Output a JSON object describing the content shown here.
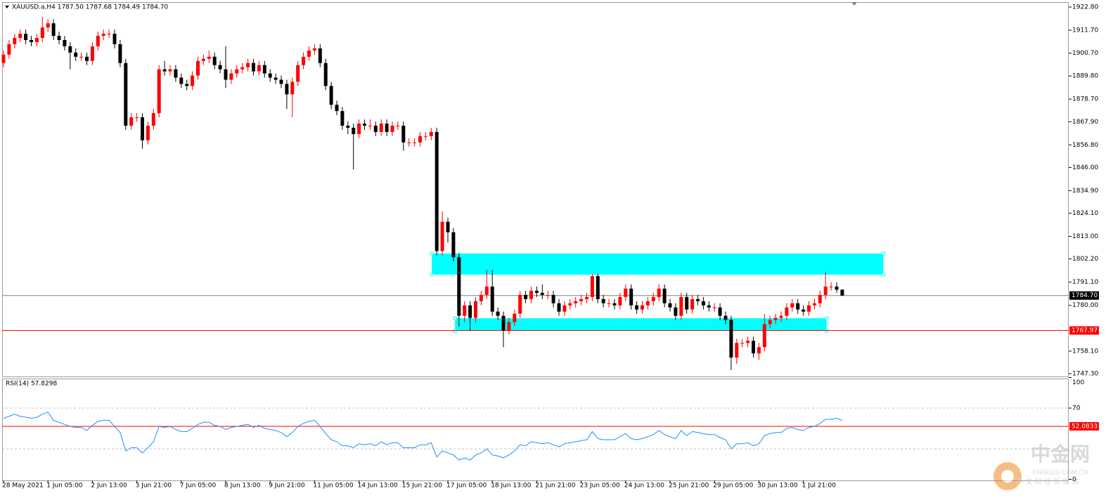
{
  "header": "XAUUSD.a,H4  1787.50 1787.68 1784.49 1784.70",
  "chart_data": [
    {
      "type": "candlestick",
      "categories": [
        "28 May 2021",
        null,
        null,
        null,
        null,
        null,
        null,
        null,
        "1 Jun 05:00",
        null,
        null,
        null,
        null,
        null,
        null,
        null,
        "2 Jun 13:00",
        null,
        null,
        null,
        null,
        null,
        null,
        null,
        "3 Jun 21:00",
        null,
        null,
        null,
        null,
        null,
        null,
        null,
        "7 Jun 05:00",
        null,
        null,
        null,
        null,
        null,
        null,
        null,
        "8 Jun 13:00",
        null,
        null,
        null,
        null,
        null,
        null,
        null,
        "9 Jun 21:00",
        null,
        null,
        null,
        null,
        null,
        null,
        null,
        "11 Jun 05:00",
        null,
        null,
        null,
        null,
        null,
        null,
        null,
        "14 Jun 13:00",
        null,
        null,
        null,
        null,
        null,
        null,
        null,
        "15 Jun 21:00",
        null,
        null,
        null,
        null,
        null,
        null,
        null,
        "17 Jun 05:00",
        null,
        null,
        null,
        null,
        null,
        null,
        null,
        "18 Jun 13:00",
        null,
        null,
        null,
        null,
        null,
        null,
        null,
        "21 Jun 21:00",
        null,
        null,
        null,
        null,
        null,
        null,
        null,
        "23 Jun 05:00",
        null,
        null,
        null,
        null,
        null,
        null,
        null,
        "24 Jun 13:00",
        null,
        null,
        null,
        null,
        null,
        null,
        null,
        "25 Jun 21:00",
        null,
        null,
        null,
        null,
        null,
        null,
        null,
        "29 Jun 05:00",
        null,
        null,
        null,
        null,
        null,
        null,
        null,
        "30 Jun 13:00",
        null,
        null,
        null,
        null,
        null,
        null,
        null,
        "1 Jul 21:00",
        null,
        null,
        null,
        null,
        null,
        null,
        null
      ],
      "open": [
        1896,
        1900,
        1905,
        1908,
        1910,
        1907,
        1906,
        1908,
        1913,
        1915,
        1909,
        1907,
        1904,
        1901,
        1899,
        1899,
        1897,
        1904,
        1909,
        1910,
        1910,
        1905,
        1896,
        1866,
        1870,
        1870,
        1859,
        1866,
        1872,
        1893,
        1892,
        1893,
        1889,
        1886,
        1885,
        1890,
        1897,
        1898,
        1899,
        1895,
        1893,
        1888,
        1891,
        1893,
        1894,
        1896,
        1892,
        1895,
        1891,
        1889,
        1888,
        1886,
        1881,
        1887,
        1895,
        1899,
        1902,
        1903,
        1896,
        1885,
        1876,
        1873,
        1866,
        1865,
        1862,
        1867,
        1866,
        1866,
        1863,
        1867,
        1863,
        1866,
        1866,
        1858,
        1858,
        1858,
        1861,
        1861,
        1863,
        1806,
        1820,
        1815,
        1803,
        1775,
        1780,
        1774,
        1782,
        1785,
        1789,
        1777,
        1775,
        1768,
        1772,
        1776,
        1785,
        1783,
        1787,
        1786,
        1785,
        1785,
        1781,
        1777,
        1780,
        1781,
        1782,
        1783,
        1784,
        1794,
        1783,
        1781,
        1781,
        1780,
        1784,
        1788,
        1780,
        1778,
        1780,
        1782,
        1784,
        1788,
        1781,
        1779,
        1775,
        1784,
        1778,
        1783,
        1782,
        1780,
        1779,
        1779,
        1775,
        1773,
        1755,
        1762,
        1762,
        1763,
        1757,
        1760,
        1771,
        1773,
        1774,
        1775,
        1779,
        1781,
        1778,
        1777,
        1780,
        1781,
        1785,
        1789,
        1789,
        1787.5
      ],
      "high": [
        1902,
        1907,
        1910,
        1912,
        1912,
        1909,
        1910,
        1918,
        1917,
        1917,
        1911,
        1909,
        1906,
        1903,
        1901,
        1901,
        1906,
        1911,
        1912,
        1912,
        1912,
        1907,
        1898,
        1872,
        1872,
        1872,
        1868,
        1874,
        1895,
        1897,
        1895,
        1895,
        1891,
        1888,
        1892,
        1899,
        1900,
        1902,
        1901,
        1897,
        1904,
        1893,
        1895,
        1896,
        1898,
        1898,
        1897,
        1897,
        1893,
        1891,
        1890,
        1888,
        1889,
        1897,
        1901,
        1904,
        1905,
        1905,
        1898,
        1887,
        1878,
        1875,
        1868,
        1867,
        1869,
        1869,
        1869,
        1868,
        1869,
        1869,
        1868,
        1868,
        1868,
        1860,
        1860,
        1863,
        1863,
        1865,
        1865,
        1825,
        1822,
        1817,
        1805,
        1782,
        1782,
        1784,
        1787,
        1797,
        1797,
        1779,
        1777,
        1774,
        1778,
        1787,
        1787,
        1789,
        1789,
        1790,
        1787,
        1787,
        1783,
        1782,
        1783,
        1784,
        1785,
        1786,
        1795,
        1795,
        1785,
        1783,
        1783,
        1786,
        1790,
        1790,
        1782,
        1782,
        1784,
        1786,
        1790,
        1790,
        1783,
        1781,
        1786,
        1786,
        1785,
        1785,
        1784,
        1782,
        1781,
        1781,
        1777,
        1775,
        1764,
        1764,
        1765,
        1765,
        1762,
        1776,
        1775,
        1776,
        1777,
        1781,
        1783,
        1783,
        1780,
        1782,
        1783,
        1787,
        1796,
        1791,
        1791,
        1787.68
      ],
      "low": [
        1894,
        1898,
        1903,
        1906,
        1905,
        1904,
        1904,
        1906,
        1911,
        1907,
        1905,
        1902,
        1893,
        1897,
        1897,
        1895,
        1895,
        1902,
        1907,
        1908,
        1903,
        1894,
        1864,
        1864,
        1868,
        1855,
        1857,
        1864,
        1870,
        1890,
        1890,
        1887,
        1884,
        1883,
        1883,
        1888,
        1895,
        1896,
        1893,
        1891,
        1884,
        1886,
        1889,
        1891,
        1892,
        1890,
        1890,
        1889,
        1887,
        1886,
        1884,
        1874,
        1870,
        1885,
        1893,
        1897,
        1900,
        1894,
        1883,
        1874,
        1871,
        1864,
        1862,
        1845,
        1860,
        1864,
        1864,
        1861,
        1861,
        1861,
        1861,
        1864,
        1854,
        1856,
        1856,
        1856,
        1859,
        1859,
        1804,
        1804,
        1810,
        1801,
        1770,
        1772,
        1768,
        1772,
        1780,
        1783,
        1775,
        1773,
        1760,
        1766,
        1770,
        1774,
        1781,
        1781,
        1784,
        1783,
        1783,
        1779,
        1775,
        1775,
        1778,
        1779,
        1780,
        1781,
        1782,
        1781,
        1779,
        1779,
        1778,
        1778,
        1782,
        1778,
        1776,
        1776,
        1778,
        1780,
        1782,
        1779,
        1777,
        1773,
        1773,
        1776,
        1776,
        1780,
        1778,
        1777,
        1777,
        1773,
        1771,
        1749,
        1752,
        1760,
        1760,
        1755,
        1754,
        1758,
        1769,
        1771,
        1772,
        1773,
        1777,
        1776,
        1775,
        1775,
        1778,
        1779,
        1783,
        1787,
        1786,
        1784.49
      ],
      "close": [
        1900,
        1905,
        1908,
        1910,
        1907,
        1906,
        1908,
        1913,
        1915,
        1909,
        1907,
        1904,
        1901,
        1899,
        1899,
        1897,
        1904,
        1909,
        1910,
        1910,
        1905,
        1896,
        1866,
        1870,
        1870,
        1859,
        1866,
        1872,
        1893,
        1892,
        1893,
        1889,
        1886,
        1885,
        1890,
        1897,
        1898,
        1899,
        1895,
        1893,
        1888,
        1891,
        1893,
        1894,
        1896,
        1892,
        1895,
        1891,
        1889,
        1888,
        1886,
        1881,
        1887,
        1895,
        1899,
        1902,
        1903,
        1896,
        1885,
        1876,
        1873,
        1866,
        1865,
        1862,
        1867,
        1866,
        1866,
        1863,
        1867,
        1863,
        1866,
        1866,
        1858,
        1858,
        1858,
        1861,
        1861,
        1863,
        1806,
        1820,
        1815,
        1803,
        1775,
        1780,
        1774,
        1782,
        1785,
        1789,
        1777,
        1775,
        1768,
        1772,
        1776,
        1785,
        1783,
        1787,
        1786,
        1785,
        1785,
        1781,
        1777,
        1780,
        1781,
        1782,
        1783,
        1784,
        1794,
        1783,
        1781,
        1781,
        1780,
        1784,
        1788,
        1780,
        1778,
        1780,
        1782,
        1784,
        1788,
        1781,
        1779,
        1775,
        1784,
        1778,
        1783,
        1782,
        1780,
        1779,
        1779,
        1775,
        1773,
        1755,
        1762,
        1762,
        1763,
        1757,
        1760,
        1771,
        1773,
        1774,
        1775,
        1779,
        1781,
        1778,
        1777,
        1780,
        1781,
        1785,
        1789,
        1789,
        1787.5,
        1784.7
      ],
      "up_color": "#ff0000",
      "down_color": "#000000",
      "ylim": [
        1745.95,
        1925.15
      ],
      "yticks": [
        {
          "value": 1922.8,
          "label": "1922.80"
        },
        {
          "value": 1911.7,
          "label": "1911.70"
        },
        {
          "value": 1900.7,
          "label": "1900.70"
        },
        {
          "value": 1889.8,
          "label": "1889.80"
        },
        {
          "value": 1878.7,
          "label": "1878.70"
        },
        {
          "value": 1867.9,
          "label": "1867.90"
        },
        {
          "value": 1856.8,
          "label": "1856.80"
        },
        {
          "value": 1846,
          "label": "1846.00"
        },
        {
          "value": 1834.9,
          "label": "1834.90"
        },
        {
          "value": 1824.1,
          "label": "1824.10"
        },
        {
          "value": 1813,
          "label": "1813.00"
        },
        {
          "value": 1802.2,
          "label": "1802.20"
        },
        {
          "value": 1791.1,
          "label": "1791.10"
        },
        {
          "value": 1780,
          "label": "1780.00"
        },
        {
          "value": 1758.1,
          "label": "1758.10"
        },
        {
          "value": 1747.3,
          "label": "1747.30"
        }
      ],
      "price_lines": [
        {
          "value": 1784.7,
          "label": "1784.70",
          "color": "#808080",
          "box": "#000000"
        },
        {
          "value": 1767.97,
          "label": "1767.97",
          "color": "#ff0000",
          "box": "#ff0000"
        }
      ],
      "zones": [
        {
          "y": [
            1794.7,
            1804.8
          ],
          "x": [
            77.1,
            158.4
          ],
          "color": "#00ffff"
        },
        {
          "y": [
            1767.8,
            1773.8
          ],
          "x": [
            81.3,
            148.2
          ],
          "color": "#00ffff"
        }
      ]
    },
    {
      "type": "line",
      "title": "RSI(14) 57.8298",
      "color": "#1e90ff",
      "values": [
        60,
        62,
        64,
        62,
        61,
        60,
        61,
        64,
        66,
        58,
        56,
        54,
        52,
        51,
        51,
        48,
        53,
        57,
        58,
        58,
        52,
        46,
        28,
        31,
        31,
        26,
        31,
        37,
        52,
        51,
        52,
        49,
        47,
        47,
        50,
        54,
        56,
        56,
        53,
        52,
        49,
        51,
        52,
        53,
        54,
        51,
        53,
        50,
        49,
        48,
        46,
        42,
        46,
        52,
        55,
        57,
        58,
        52,
        45,
        39,
        37,
        33,
        33,
        31,
        35,
        34,
        35,
        33,
        37,
        34,
        36,
        36,
        31,
        31,
        31,
        34,
        34,
        36,
        22,
        28,
        26,
        24,
        19,
        21,
        19,
        24,
        26,
        30,
        24,
        23,
        21,
        24,
        28,
        34,
        33,
        37,
        36,
        35,
        36,
        34,
        32,
        35,
        36,
        37,
        38,
        39,
        47,
        40,
        39,
        39,
        39,
        42,
        45,
        40,
        39,
        40,
        42,
        44,
        48,
        44,
        42,
        40,
        48,
        43,
        47,
        46,
        45,
        44,
        44,
        41,
        39,
        30,
        35,
        35,
        36,
        33,
        35,
        43,
        45,
        46,
        46,
        50,
        51,
        49,
        48,
        51,
        52,
        55,
        59,
        59,
        60,
        57.8298
      ],
      "ylim": [
        0,
        100
      ],
      "yticks": [
        100,
        70,
        0
      ],
      "levels": [
        {
          "value": 70,
          "color": "#c0c0c0",
          "dashed": true
        },
        {
          "value": 30,
          "color": "#c0c0c0",
          "dashed": true
        },
        {
          "value": 52.0833,
          "label": "52.0833",
          "color": "#ff0000",
          "dashed": false
        }
      ]
    }
  ],
  "watermark": {
    "brand": "中金网",
    "site": "CNGOLD.COM.CN",
    "slogan": "中 文 财 经 新 媒 体"
  }
}
